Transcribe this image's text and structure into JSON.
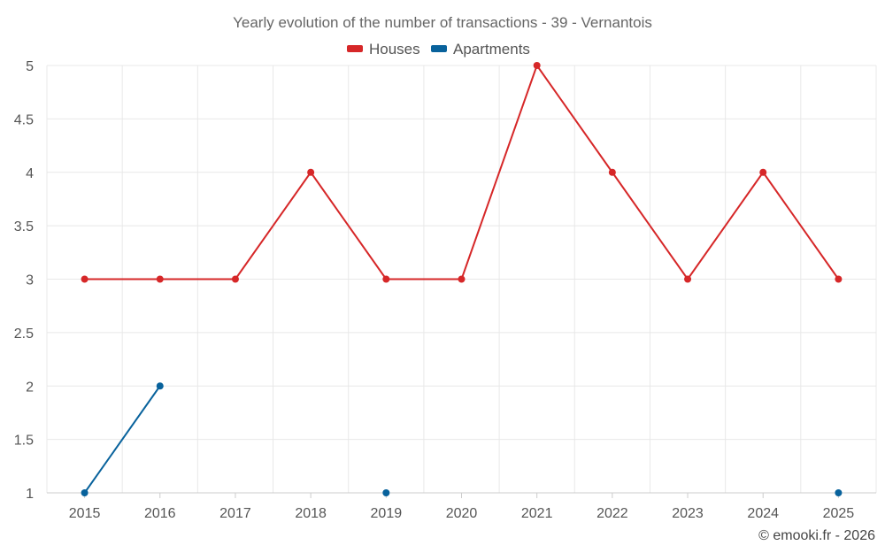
{
  "chart_data": {
    "type": "line",
    "title": "Yearly evolution of the number of transactions - 39 - Vernantois",
    "categories": [
      "2015",
      "2016",
      "2017",
      "2018",
      "2019",
      "2020",
      "2021",
      "2022",
      "2023",
      "2024",
      "2025"
    ],
    "series": [
      {
        "name": "Houses",
        "color": "#d62728",
        "values": [
          3,
          3,
          3,
          4,
          3,
          3,
          5,
          4,
          3,
          4,
          3
        ]
      },
      {
        "name": "Apartments",
        "color": "#08629c",
        "values": [
          1,
          2,
          null,
          null,
          1,
          null,
          null,
          null,
          null,
          null,
          1
        ]
      }
    ],
    "yticks": [
      "1",
      "1.5",
      "2",
      "2.5",
      "3",
      "3.5",
      "4",
      "4.5",
      "5"
    ],
    "ylim": [
      1,
      5
    ],
    "xlabel": "",
    "ylabel": "",
    "legend": "top-center",
    "grid": true
  },
  "credit": "© emooki.fr - 2026"
}
